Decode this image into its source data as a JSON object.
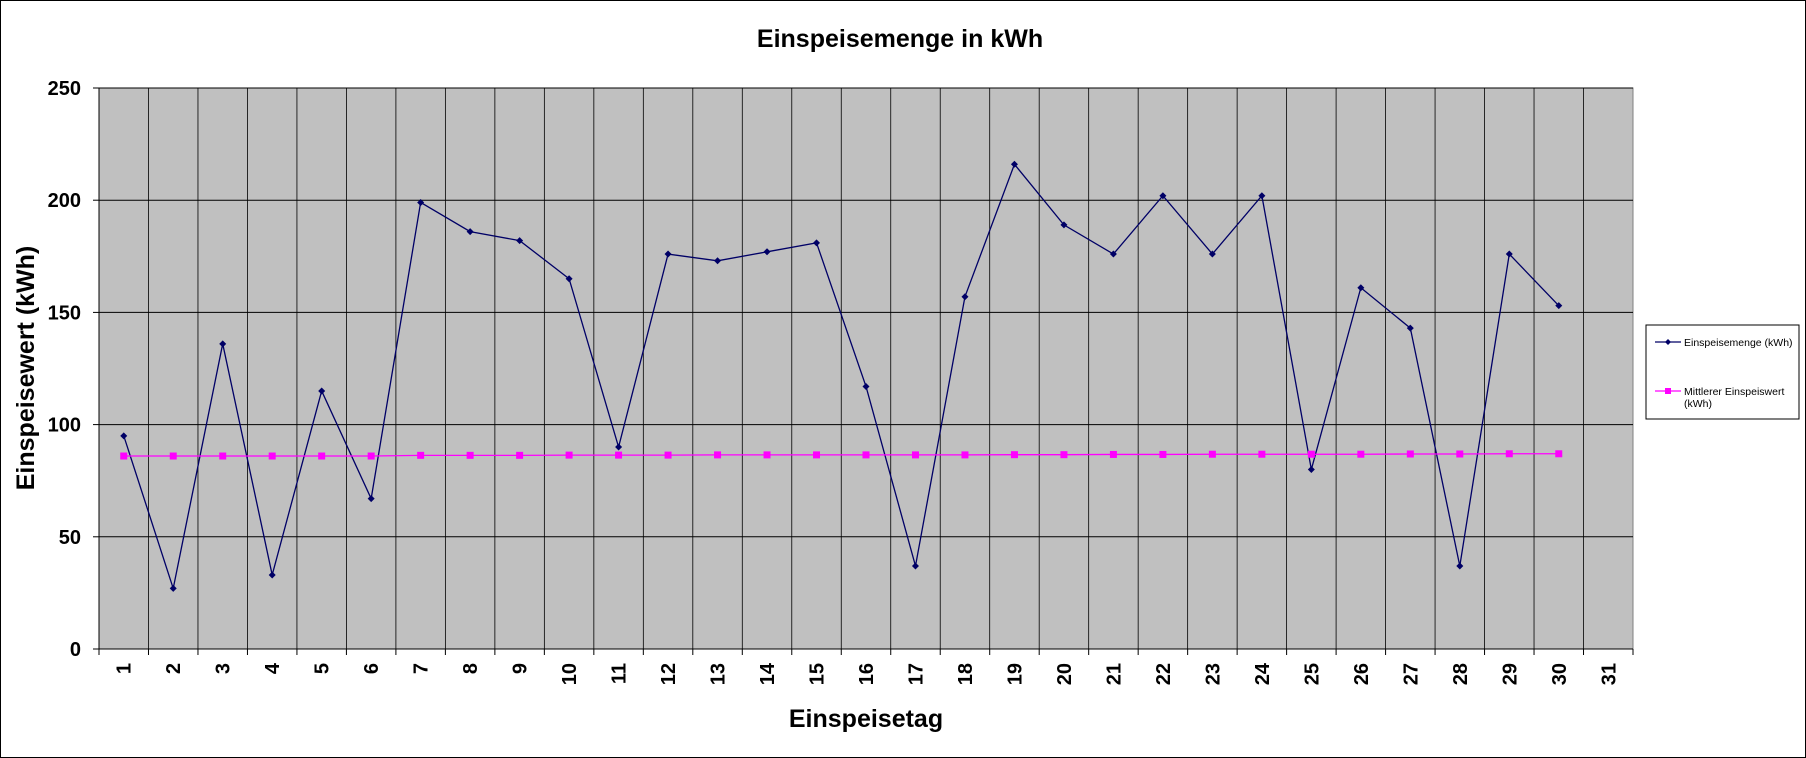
{
  "chart_data": {
    "type": "line",
    "title": "Einspeisemenge in kWh",
    "xlabel": "Einspeisetag",
    "ylabel": "Einspeisewert  (kWh)",
    "ylim": [
      0,
      250
    ],
    "yticks": [
      0,
      50,
      100,
      150,
      200,
      250
    ],
    "categories": [
      "1",
      "2",
      "3",
      "4",
      "5",
      "6",
      "7",
      "8",
      "9",
      "10",
      "11",
      "12",
      "13",
      "14",
      "15",
      "16",
      "17",
      "18",
      "19",
      "20",
      "21",
      "22",
      "23",
      "24",
      "25",
      "26",
      "27",
      "28",
      "29",
      "30",
      "31"
    ],
    "grid": true,
    "legend_position": "right",
    "series": [
      {
        "name": "Einspeisemenge (kWh)",
        "color": "#000066",
        "marker": "diamond",
        "values": [
          95,
          27,
          136,
          33,
          115,
          67,
          199,
          186,
          182,
          165,
          90,
          176,
          173,
          177,
          181,
          117,
          37,
          157,
          216,
          189,
          176,
          202,
          176,
          202,
          80,
          161,
          143,
          37,
          176,
          153,
          null
        ]
      },
      {
        "name": "Mittlerer Einspeiswert\n(kWh)",
        "legend_lines": [
          "Mittlerer Einspeiswert",
          "(kWh)"
        ],
        "color": "#ff00ff",
        "marker": "square",
        "values": [
          86,
          86,
          86,
          86,
          86,
          86,
          86.3,
          86.3,
          86.3,
          86.4,
          86.4,
          86.4,
          86.5,
          86.5,
          86.5,
          86.5,
          86.5,
          86.5,
          86.6,
          86.6,
          86.7,
          86.7,
          86.8,
          86.8,
          86.8,
          86.8,
          86.9,
          86.9,
          87,
          87,
          null
        ]
      }
    ]
  }
}
